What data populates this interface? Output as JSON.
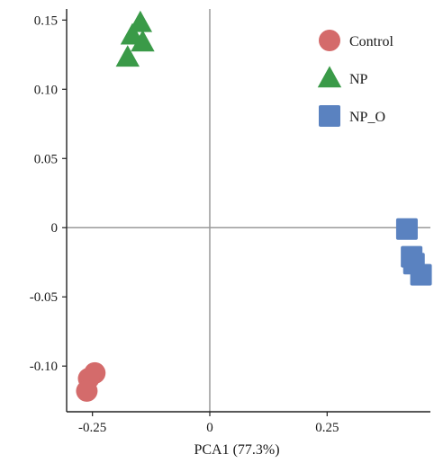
{
  "chart_data": {
    "type": "scatter",
    "title": "",
    "xlabel": "PCA1 (77.3%)",
    "ylabel": "",
    "xlim": [
      -0.305,
      0.47
    ],
    "ylim": [
      -0.133,
      0.158
    ],
    "x_ticks": [
      {
        "value": -0.25,
        "label": "-0.25"
      },
      {
        "value": 0,
        "label": "0"
      },
      {
        "value": 0.25,
        "label": "0.25"
      }
    ],
    "y_ticks": [
      {
        "value": 0.15,
        "label": "0.15"
      },
      {
        "value": 0.1,
        "label": "0.10"
      },
      {
        "value": 0.05,
        "label": "0.05"
      },
      {
        "value": 0,
        "label": "0"
      },
      {
        "value": -0.05,
        "label": "-0.05"
      },
      {
        "value": -0.1,
        "label": "-0.10"
      }
    ],
    "zero_lines": true,
    "grid": false,
    "legend_position": "top-right",
    "series": [
      {
        "name": "Control",
        "marker": "circle",
        "color": "#d46b6b",
        "points": [
          {
            "x": -0.245,
            "y": -0.105
          },
          {
            "x": -0.258,
            "y": -0.109
          },
          {
            "x": -0.262,
            "y": -0.118
          }
        ]
      },
      {
        "name": "NP",
        "marker": "triangle",
        "color": "#3a9a48",
        "points": [
          {
            "x": -0.148,
            "y": 0.148
          },
          {
            "x": -0.165,
            "y": 0.139
          },
          {
            "x": -0.143,
            "y": 0.134
          },
          {
            "x": -0.175,
            "y": 0.123
          }
        ]
      },
      {
        "name": "NP_O",
        "marker": "square",
        "color": "#5a82c0",
        "points": [
          {
            "x": 0.42,
            "y": -0.001
          },
          {
            "x": 0.43,
            "y": -0.021
          },
          {
            "x": 0.435,
            "y": -0.026
          },
          {
            "x": 0.45,
            "y": -0.034
          }
        ]
      }
    ]
  }
}
